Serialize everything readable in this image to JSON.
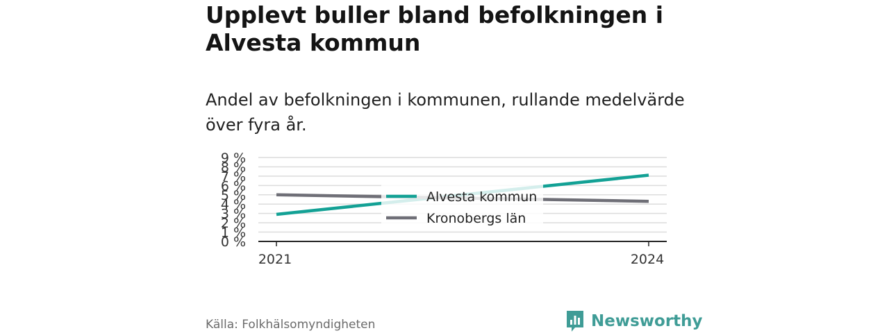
{
  "title": "Upplevt buller bland befolkningen i Alvesta kommun",
  "subtitle": "Andel av befolkningen i kommunen, rullande medelvärde över fyra år.",
  "source": "Källa: Folkhälsomyndigheten",
  "brand": {
    "name": "Newsworthy",
    "icon": "bar-chart-logo-icon",
    "color": "#3f9c96"
  },
  "chart_data": {
    "type": "line",
    "x": [
      "2021",
      "2024"
    ],
    "y_ticks": [
      "0 %",
      "1 %",
      "2 %",
      "3 %",
      "4 %",
      "5 %",
      "6 %",
      "7 %",
      "8 %",
      "9 %"
    ],
    "ylim": [
      0,
      9
    ],
    "grid": true,
    "legend_position": "center",
    "series": [
      {
        "name": "Alvesta kommun",
        "values": [
          2.9,
          7.1
        ],
        "color": "#13a195"
      },
      {
        "name": "Kronobergs län",
        "values": [
          5.0,
          4.3
        ],
        "color": "#6f6f77"
      }
    ]
  }
}
